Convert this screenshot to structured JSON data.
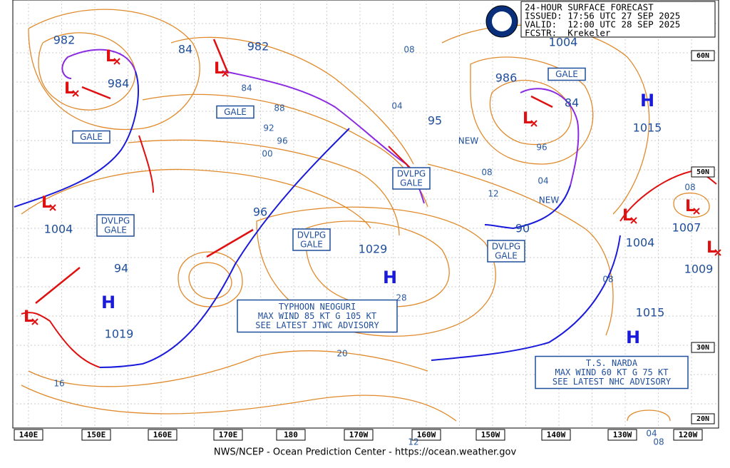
{
  "header": {
    "lines": [
      "24-HOUR SURFACE FORECAST",
      "ISSUED: 17:56 UTC 27 SEP 2025",
      "VALID:  12:00 UTC 28 SEP 2025",
      "FCSTR:  Krekeler"
    ]
  },
  "footer": "NWS/NCEP - Ocean Prediction Center - https://ocean.weather.gov",
  "longitudes": [
    "140E",
    "150E",
    "160E",
    "170E",
    "180",
    "170W",
    "160W",
    "150W",
    "140W",
    "130W",
    "120W"
  ],
  "latitudes": [
    "60N",
    "50N",
    "30N",
    "20N"
  ],
  "pressure_labels": [
    "982",
    "984",
    "84",
    "982",
    "1004",
    "986",
    "84",
    "1015",
    "95",
    "1004",
    "94",
    "1019",
    "96",
    "1029",
    "1007",
    "1004",
    "1009",
    "1015",
    "90"
  ],
  "isobar_labels": [
    "84",
    "88",
    "92",
    "96",
    "00",
    "04",
    "08",
    "08",
    "12",
    "04",
    "96",
    "08",
    "08",
    "28",
    "20",
    "16",
    "04",
    "08",
    "12"
  ],
  "gale_boxes": [
    [
      "GALE"
    ],
    [
      "GALE"
    ],
    [
      "GALE"
    ],
    [
      "DVLPG",
      "GALE"
    ],
    [
      "DVLPG",
      "GALE"
    ],
    [
      "DVLPG",
      "GALE"
    ],
    [
      "DVLPG",
      "GALE"
    ]
  ],
  "new_labels": [
    "NEW",
    "NEW"
  ],
  "highs": [
    "H",
    "H",
    "H",
    "H"
  ],
  "lows": [
    "L",
    "L",
    "L",
    "L",
    "L",
    "L",
    "L",
    "L",
    "L"
  ],
  "advisories": [
    [
      "TYPHOON NEOGURI",
      "MAX WIND 85 KT G 105 KT",
      "SEE LATEST JTWC ADVISORY"
    ],
    [
      "T.S. NARDA",
      "MAX WIND 60 KT G 75 KT",
      "SEE LATEST NHC ADVISORY"
    ]
  ]
}
